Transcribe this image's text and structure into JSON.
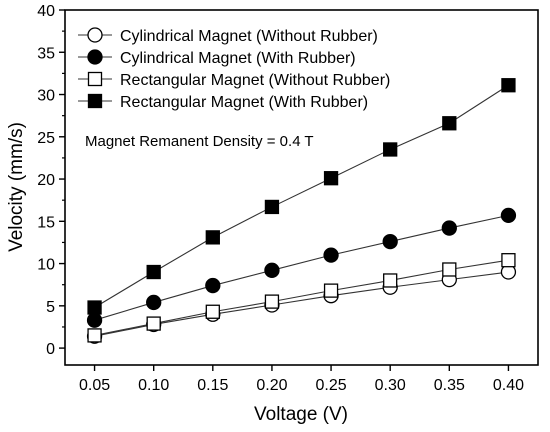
{
  "chart_data": {
    "type": "line",
    "xlabel": "Voltage (V)",
    "ylabel": "Velocity (mm/s)",
    "xlim": [
      0.025,
      0.425
    ],
    "ylim": [
      -2,
      40
    ],
    "x_ticks": [
      "0.05",
      "0.10",
      "0.15",
      "0.20",
      "0.25",
      "0.30",
      "0.35",
      "0.40"
    ],
    "y_ticks": [
      "0",
      "5",
      "10",
      "15",
      "20",
      "25",
      "30",
      "35",
      "40"
    ],
    "x": [
      0.05,
      0.1,
      0.15,
      0.2,
      0.25,
      0.3,
      0.35,
      0.4
    ],
    "annotation": "Magnet Remanent Density = 0.4 T",
    "legend_position": "top-left",
    "grid": false,
    "series": [
      {
        "name": "Cylindrical Magnet (Without Rubber)",
        "marker": "circle",
        "fill": "open",
        "values": [
          1.4,
          2.8,
          4.0,
          5.1,
          6.2,
          7.2,
          8.1,
          9.0
        ]
      },
      {
        "name": "Cylindrical Magnet (With Rubber)",
        "marker": "circle",
        "fill": "filled",
        "values": [
          3.3,
          5.4,
          7.4,
          9.2,
          11.0,
          12.6,
          14.2,
          15.7
        ]
      },
      {
        "name": "Rectangular Magnet (Without Rubber)",
        "marker": "square",
        "fill": "open",
        "values": [
          1.5,
          2.9,
          4.3,
          5.5,
          6.8,
          8.0,
          9.3,
          10.4
        ]
      },
      {
        "name": "Rectangular Magnet (With Rubber)",
        "marker": "square",
        "fill": "filled",
        "values": [
          4.8,
          9.0,
          13.1,
          16.7,
          20.1,
          23.5,
          26.6,
          31.1
        ]
      }
    ],
    "colors": {
      "line": "#333333",
      "marker_stroke": "#000000",
      "filled": "#000000",
      "open": "#ffffff",
      "axis": "#000000"
    }
  }
}
